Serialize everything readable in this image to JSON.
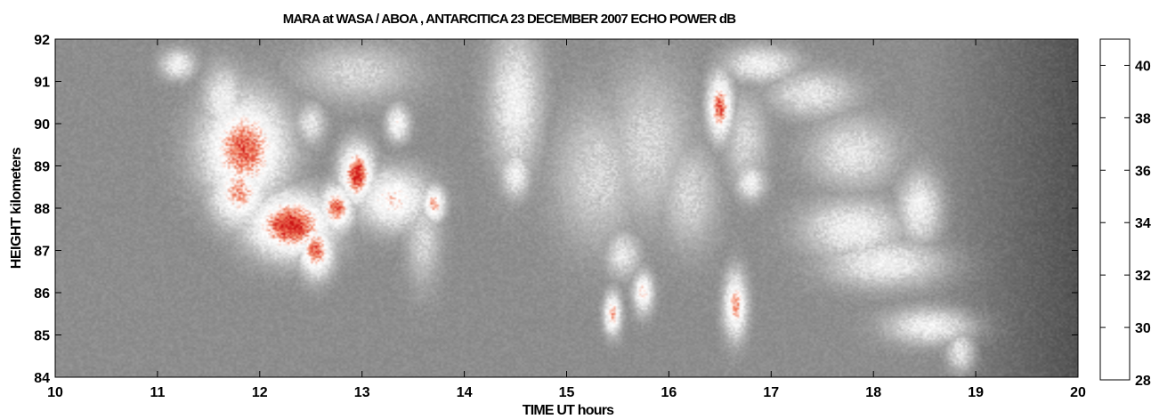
{
  "chart_data": {
    "type": "heatmap",
    "title": "MARA at WASA / ABOA , ANTARCITICA  23 DECEMBER 2007    ECHO POWER dB",
    "xlabel": "TIME UT hours",
    "ylabel": "HEIGHT kilometers",
    "xlim": [
      10,
      20
    ],
    "ylim": [
      84,
      92
    ],
    "xticks": [
      10,
      11,
      12,
      13,
      14,
      15,
      16,
      17,
      18,
      19,
      20
    ],
    "yticks": [
      84,
      85,
      86,
      87,
      88,
      89,
      90,
      91,
      92
    ],
    "colorbar": {
      "range": [
        28,
        41
      ],
      "ticks": [
        28,
        30,
        32,
        34,
        36,
        38,
        40
      ],
      "colormap": [
        "#ffffff",
        "#7a7a7a"
      ]
    },
    "background_level_db": 28.5,
    "colors": {
      "low": "#8c8c8c",
      "mid": "#e8e8e8",
      "high": "#ffffff",
      "strong": "#f08060",
      "peak": "#d01818"
    },
    "echo_regions": [
      {
        "t": 11.2,
        "h": 91.4,
        "st": 0.12,
        "sh": 0.25,
        "db": 35
      },
      {
        "t": 11.65,
        "h": 90.5,
        "st": 0.15,
        "sh": 0.6,
        "db": 35
      },
      {
        "t": 11.85,
        "h": 89.4,
        "st": 0.3,
        "sh": 0.9,
        "db": 39
      },
      {
        "t": 11.8,
        "h": 88.4,
        "st": 0.2,
        "sh": 0.6,
        "db": 38
      },
      {
        "t": 12.3,
        "h": 87.6,
        "st": 0.3,
        "sh": 0.55,
        "db": 40
      },
      {
        "t": 12.55,
        "h": 87.0,
        "st": 0.12,
        "sh": 0.45,
        "db": 39
      },
      {
        "t": 12.75,
        "h": 88.0,
        "st": 0.12,
        "sh": 0.4,
        "db": 39
      },
      {
        "t": 12.95,
        "h": 88.8,
        "st": 0.12,
        "sh": 0.5,
        "db": 40
      },
      {
        "t": 13.3,
        "h": 88.2,
        "st": 0.25,
        "sh": 0.5,
        "db": 37
      },
      {
        "t": 13.7,
        "h": 88.1,
        "st": 0.08,
        "sh": 0.3,
        "db": 38
      },
      {
        "t": 13.35,
        "h": 90.0,
        "st": 0.08,
        "sh": 0.3,
        "db": 36
      },
      {
        "t": 12.95,
        "h": 91.2,
        "st": 0.4,
        "sh": 0.5,
        "db": 33
      },
      {
        "t": 12.5,
        "h": 90.0,
        "st": 0.1,
        "sh": 0.35,
        "db": 34
      },
      {
        "t": 13.6,
        "h": 87.3,
        "st": 0.12,
        "sh": 0.8,
        "db": 33
      },
      {
        "t": 14.5,
        "h": 90.5,
        "st": 0.18,
        "sh": 1.2,
        "db": 35
      },
      {
        "t": 14.5,
        "h": 88.8,
        "st": 0.1,
        "sh": 0.4,
        "db": 35
      },
      {
        "t": 15.3,
        "h": 88.8,
        "st": 0.3,
        "sh": 1.2,
        "db": 33
      },
      {
        "t": 15.8,
        "h": 89.5,
        "st": 0.3,
        "sh": 1.3,
        "db": 33
      },
      {
        "t": 15.55,
        "h": 86.9,
        "st": 0.12,
        "sh": 0.4,
        "db": 34
      },
      {
        "t": 15.45,
        "h": 85.5,
        "st": 0.06,
        "sh": 0.35,
        "db": 38
      },
      {
        "t": 15.75,
        "h": 86.0,
        "st": 0.07,
        "sh": 0.35,
        "db": 37
      },
      {
        "t": 16.2,
        "h": 88.3,
        "st": 0.2,
        "sh": 0.9,
        "db": 33
      },
      {
        "t": 16.5,
        "h": 90.4,
        "st": 0.09,
        "sh": 0.55,
        "db": 39
      },
      {
        "t": 16.65,
        "h": 85.7,
        "st": 0.08,
        "sh": 0.55,
        "db": 38
      },
      {
        "t": 16.9,
        "h": 91.4,
        "st": 0.25,
        "sh": 0.3,
        "db": 35
      },
      {
        "t": 16.75,
        "h": 89.6,
        "st": 0.15,
        "sh": 0.8,
        "db": 33
      },
      {
        "t": 16.8,
        "h": 88.6,
        "st": 0.1,
        "sh": 0.3,
        "db": 35
      },
      {
        "t": 17.4,
        "h": 90.7,
        "st": 0.3,
        "sh": 0.4,
        "db": 34
      },
      {
        "t": 17.8,
        "h": 89.3,
        "st": 0.3,
        "sh": 0.6,
        "db": 34
      },
      {
        "t": 17.8,
        "h": 87.5,
        "st": 0.35,
        "sh": 0.5,
        "db": 35
      },
      {
        "t": 18.1,
        "h": 86.7,
        "st": 0.4,
        "sh": 0.4,
        "db": 35
      },
      {
        "t": 18.45,
        "h": 88.0,
        "st": 0.15,
        "sh": 0.6,
        "db": 35
      },
      {
        "t": 18.55,
        "h": 85.2,
        "st": 0.3,
        "sh": 0.3,
        "db": 35
      },
      {
        "t": 18.85,
        "h": 84.6,
        "st": 0.1,
        "sh": 0.35,
        "db": 34
      }
    ]
  }
}
